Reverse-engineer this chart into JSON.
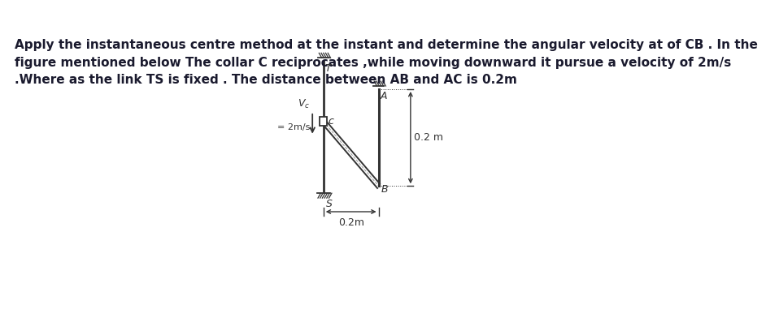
{
  "text_line1": "Apply the instantaneous centre method at the instant and determine the angular velocity at of CB . In the",
  "text_line2": "figure mentioned below The collar C reciprocates ,while moving downward it pursue a velocity of 2m/s",
  "text_line3": ".Where as the link TS is fixed . The distance between AB and AC is 0.2m",
  "bg_color": "#ffffff",
  "text_color": "#1a1a2e",
  "diagram_color": "#333333",
  "label_S": "S",
  "label_T": "T",
  "label_C": "c",
  "label_A": "A",
  "label_B": "B",
  "label_vc": "Vc",
  "label_velocity": "= 2m/s",
  "label_dist1": "0.2 m",
  "label_dist2": "0.2m",
  "font_size_text": 11.0,
  "font_size_diagram": 9
}
